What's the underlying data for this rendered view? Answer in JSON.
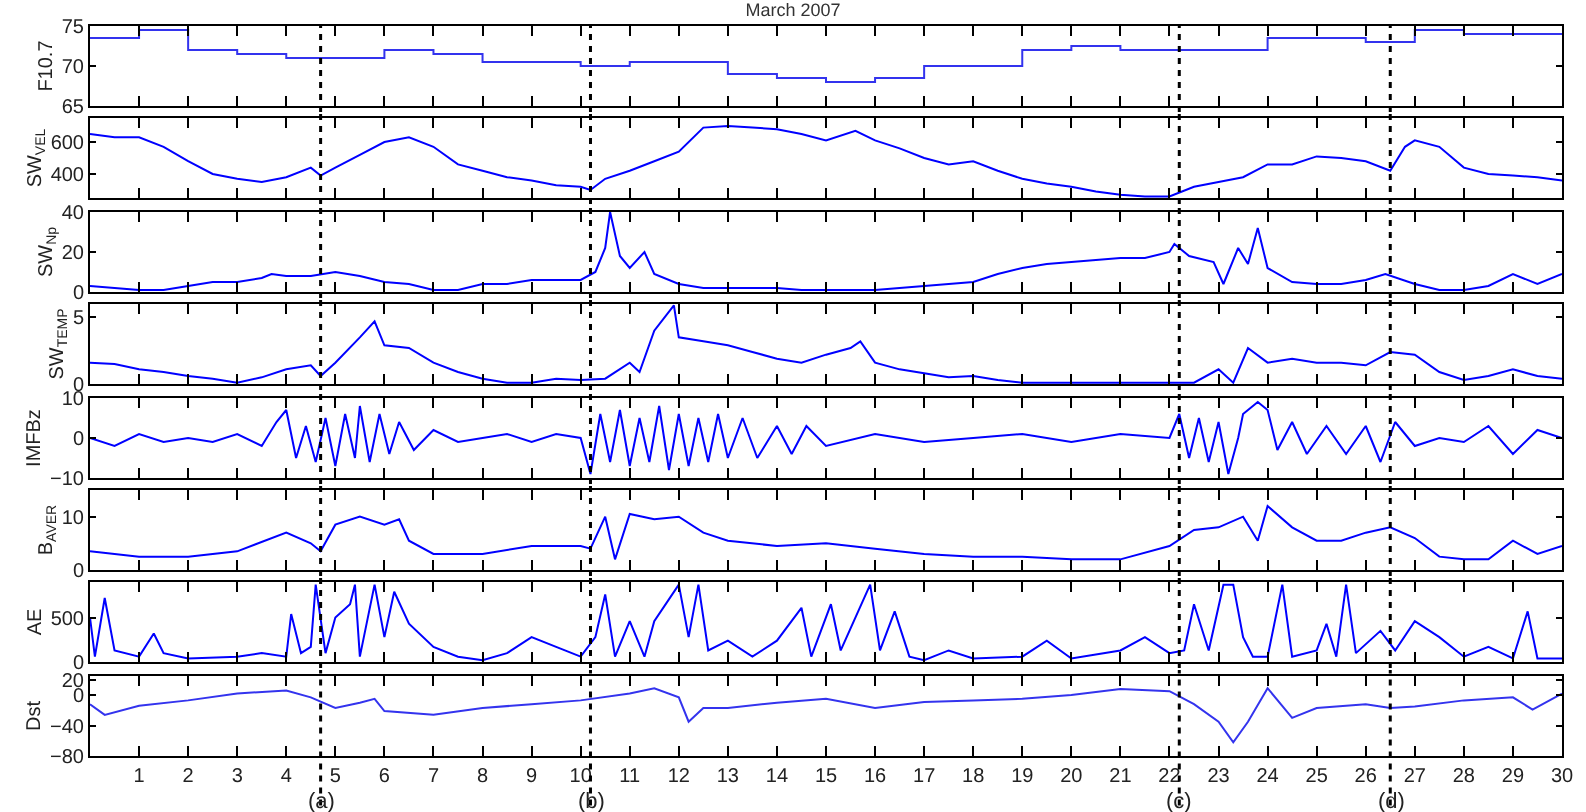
{
  "chart_data": [
    {
      "type": "step",
      "title": "March 2007",
      "ylabel": "F10.7",
      "xlim": [
        0,
        30
      ],
      "xticks": [
        1,
        2,
        3,
        4,
        5,
        6,
        7,
        8,
        9,
        10,
        11,
        12,
        13,
        14,
        15,
        16,
        17,
        18,
        19,
        20,
        21,
        22,
        23,
        24,
        25,
        26,
        27,
        28,
        29,
        30
      ],
      "ylim": [
        65,
        75
      ],
      "yticks": [
        65,
        70,
        75
      ],
      "tick_labels": "y",
      "ref_lines": [
        {
          "axis": "x",
          "value": 4.7,
          "line_style": "dotted",
          "color": "#000000"
        },
        {
          "axis": "x",
          "value": 10.2,
          "line_style": "dotted",
          "color": "#000000"
        },
        {
          "axis": "x",
          "value": 22.2,
          "line_style": "dotted",
          "color": "#000000"
        },
        {
          "axis": "x",
          "value": 26.5,
          "line_style": "dotted",
          "color": "#000000"
        }
      ],
      "series": [
        {
          "color": "#3333ee",
          "x": [
            0,
            1,
            2,
            3,
            4,
            5,
            6,
            7,
            8,
            9,
            10,
            11,
            12,
            13,
            14,
            15,
            16,
            17,
            18,
            19,
            20,
            21,
            22,
            23,
            24,
            25,
            26,
            27,
            28,
            29,
            30
          ],
          "values": [
            73.5,
            74.5,
            72,
            71.5,
            71,
            71,
            72,
            71.5,
            70.5,
            70.5,
            70,
            70.5,
            70.5,
            69,
            68.5,
            68,
            68.5,
            70,
            70,
            72,
            72.5,
            72,
            72,
            72,
            73.5,
            73.5,
            73,
            74.5,
            74,
            74,
            74
          ]
        }
      ]
    },
    {
      "type": "line",
      "ylabel": "SW$_{VEL}$",
      "xlim": [
        0,
        30
      ],
      "xticks": [
        1,
        2,
        3,
        4,
        5,
        6,
        7,
        8,
        9,
        10,
        11,
        12,
        13,
        14,
        15,
        16,
        17,
        18,
        19,
        20,
        21,
        22,
        23,
        24,
        25,
        26,
        27,
        28,
        29,
        30
      ],
      "ylim": [
        250,
        750
      ],
      "yticks": [
        400,
        600
      ],
      "tick_labels": "y",
      "ref_lines": [
        {
          "axis": "x",
          "value": 4.7,
          "line_style": "dotted",
          "color": "#000000"
        },
        {
          "axis": "x",
          "value": 10.2,
          "line_style": "dotted",
          "color": "#000000"
        },
        {
          "axis": "x",
          "value": 22.2,
          "line_style": "dotted",
          "color": "#000000"
        },
        {
          "axis": "x",
          "value": 26.5,
          "line_style": "dotted",
          "color": "#000000"
        }
      ],
      "series": [
        {
          "color": "#0000ff",
          "x": [
            0,
            0.5,
            1,
            1.5,
            2,
            2.5,
            3,
            3.5,
            4,
            4.5,
            4.7,
            5,
            5.5,
            6,
            6.5,
            7,
            7.5,
            8,
            8.5,
            9,
            9.5,
            10,
            10.2,
            10.5,
            11,
            11.5,
            12,
            12.5,
            13,
            13.5,
            14,
            14.5,
            15,
            15.6,
            16,
            16.5,
            17,
            17.5,
            18,
            18.5,
            19,
            19.5,
            20,
            20.5,
            21,
            21.5,
            22,
            22.5,
            23,
            23.5,
            24,
            24.5,
            25,
            25.5,
            26,
            26.5,
            26.8,
            27,
            27.5,
            28,
            28.5,
            29,
            29.5,
            30
          ],
          "values": [
            650,
            630,
            630,
            570,
            480,
            400,
            370,
            350,
            380,
            440,
            390,
            440,
            520,
            600,
            630,
            570,
            460,
            420,
            380,
            360,
            330,
            320,
            300,
            370,
            420,
            480,
            540,
            690,
            700,
            690,
            680,
            650,
            610,
            670,
            610,
            560,
            500,
            460,
            480,
            420,
            370,
            340,
            320,
            290,
            270,
            260,
            260,
            320,
            350,
            380,
            460,
            460,
            510,
            500,
            480,
            420,
            570,
            610,
            570,
            440,
            400,
            390,
            380,
            360
          ]
        }
      ]
    },
    {
      "type": "line",
      "ylabel": "SW$_{Np}$",
      "xlim": [
        0,
        30
      ],
      "xticks": [
        1,
        2,
        3,
        4,
        5,
        6,
        7,
        8,
        9,
        10,
        11,
        12,
        13,
        14,
        15,
        16,
        17,
        18,
        19,
        20,
        21,
        22,
        23,
        24,
        25,
        26,
        27,
        28,
        29,
        30
      ],
      "ylim": [
        0,
        40
      ],
      "yticks": [
        0,
        20,
        40
      ],
      "tick_labels": "y",
      "ref_lines": [
        {
          "axis": "x",
          "value": 4.7,
          "line_style": "dotted",
          "color": "#000000"
        },
        {
          "axis": "x",
          "value": 10.2,
          "line_style": "dotted",
          "color": "#000000"
        },
        {
          "axis": "x",
          "value": 22.2,
          "line_style": "dotted",
          "color": "#000000"
        },
        {
          "axis": "x",
          "value": 26.5,
          "line_style": "dotted",
          "color": "#000000"
        }
      ],
      "series": [
        {
          "color": "#0000ff",
          "x": [
            0,
            0.5,
            1,
            1.5,
            2,
            2.5,
            3,
            3.5,
            3.7,
            4,
            4.5,
            5,
            5.5,
            6,
            6.5,
            7,
            7.5,
            8,
            8.5,
            9,
            9.5,
            10,
            10.3,
            10.5,
            10.6,
            10.8,
            11,
            11.3,
            11.5,
            12,
            12.5,
            13,
            13.5,
            14,
            14.5,
            15,
            15.5,
            16,
            16.5,
            17,
            17.5,
            18,
            18.5,
            19,
            19.5,
            20,
            20.5,
            21,
            21.5,
            22,
            22.1,
            22.4,
            22.9,
            23.1,
            23.4,
            23.6,
            23.8,
            24,
            24.5,
            25,
            25.5,
            26,
            26.4,
            27,
            27.5,
            28,
            28.5,
            29,
            29.5,
            30
          ],
          "values": [
            3,
            2,
            1,
            1,
            3,
            5,
            5,
            7,
            9,
            8,
            8,
            10,
            8,
            5,
            4,
            1,
            1,
            4,
            4,
            6,
            6,
            6,
            10,
            22,
            40,
            18,
            12,
            20,
            9,
            4,
            2,
            2,
            2,
            2,
            1,
            1,
            1,
            1,
            2,
            3,
            4,
            5,
            9,
            12,
            14,
            15,
            16,
            17,
            17,
            20,
            24,
            18,
            15,
            4,
            22,
            14,
            32,
            12,
            5,
            4,
            4,
            6,
            9,
            4,
            1,
            1,
            3,
            9,
            4,
            9
          ]
        }
      ]
    },
    {
      "type": "line",
      "ylabel": "SW$_{TEMP}$",
      "xlim": [
        0,
        30
      ],
      "xticks": [
        1,
        2,
        3,
        4,
        5,
        6,
        7,
        8,
        9,
        10,
        11,
        12,
        13,
        14,
        15,
        16,
        17,
        18,
        19,
        20,
        21,
        22,
        23,
        24,
        25,
        26,
        27,
        28,
        29,
        30
      ],
      "ylim": [
        0,
        6
      ],
      "yticks": [
        0,
        5
      ],
      "tick_labels": "y",
      "ref_lines": [
        {
          "axis": "x",
          "value": 4.7,
          "line_style": "dotted",
          "color": "#000000"
        },
        {
          "axis": "x",
          "value": 10.2,
          "line_style": "dotted",
          "color": "#000000"
        },
        {
          "axis": "x",
          "value": 22.2,
          "line_style": "dotted",
          "color": "#000000"
        },
        {
          "axis": "x",
          "value": 26.5,
          "line_style": "dotted",
          "color": "#000000"
        }
      ],
      "series": [
        {
          "color": "#0000ff",
          "x": [
            0,
            0.5,
            1,
            1.5,
            2,
            2.5,
            3,
            3.5,
            4,
            4.5,
            4.7,
            5,
            5.5,
            5.8,
            6,
            6.5,
            7,
            7.5,
            8,
            8.5,
            9,
            9.5,
            10,
            10.5,
            11,
            11.2,
            11.5,
            11.9,
            12,
            12.5,
            13,
            13.5,
            14,
            14.5,
            15,
            15.5,
            15.7,
            16,
            16.5,
            17,
            17.5,
            18,
            18.5,
            19,
            20,
            21,
            22,
            22.5,
            23,
            23.3,
            23.6,
            24,
            24.5,
            25,
            25.5,
            26,
            26.5,
            27,
            27.5,
            28,
            28.5,
            29,
            29.5,
            30
          ],
          "values": [
            1.6,
            1.5,
            1.1,
            0.9,
            0.6,
            0.4,
            0.1,
            0.5,
            1.1,
            1.4,
            0.6,
            1.6,
            3.5,
            4.7,
            2.9,
            2.7,
            1.6,
            0.9,
            0.4,
            0.1,
            0.1,
            0.4,
            0.3,
            0.4,
            1.6,
            0.9,
            4,
            5.9,
            3.5,
            3.2,
            2.9,
            2.4,
            1.9,
            1.6,
            2.2,
            2.7,
            3.2,
            1.6,
            1.1,
            0.8,
            0.5,
            0.6,
            0.3,
            0.1,
            0.1,
            0.1,
            0.1,
            0.1,
            1.1,
            0.1,
            2.7,
            1.6,
            1.9,
            1.6,
            1.6,
            1.4,
            2.4,
            2.2,
            0.9,
            0.3,
            0.6,
            1.1,
            0.6,
            0.4
          ]
        }
      ]
    },
    {
      "type": "line",
      "ylabel": "IMFBz",
      "xlim": [
        0,
        30
      ],
      "xticks": [
        1,
        2,
        3,
        4,
        5,
        6,
        7,
        8,
        9,
        10,
        11,
        12,
        13,
        14,
        15,
        16,
        17,
        18,
        19,
        20,
        21,
        22,
        23,
        24,
        25,
        26,
        27,
        28,
        29,
        30
      ],
      "ylim": [
        -10,
        10
      ],
      "yticks": [
        {
          "value": -10,
          "label": "−10"
        },
        0,
        10
      ],
      "tick_labels": "y",
      "ref_lines": [
        {
          "axis": "x",
          "value": 4.7,
          "line_style": "dotted",
          "color": "#000000"
        },
        {
          "axis": "x",
          "value": 10.2,
          "line_style": "dotted",
          "color": "#000000"
        },
        {
          "axis": "x",
          "value": 22.2,
          "line_style": "dotted",
          "color": "#000000"
        },
        {
          "axis": "x",
          "value": 26.5,
          "line_style": "dotted",
          "color": "#000000"
        }
      ],
      "series": [
        {
          "color": "#0000ff",
          "x": [
            0,
            0.5,
            1,
            1.5,
            2,
            2.5,
            3,
            3.5,
            3.8,
            4,
            4.2,
            4.4,
            4.6,
            4.8,
            5,
            5.2,
            5.4,
            5.5,
            5.7,
            5.9,
            6.1,
            6.3,
            6.6,
            7,
            7.5,
            8,
            8.5,
            9,
            9.5,
            10,
            10.2,
            10.4,
            10.6,
            10.8,
            11,
            11.2,
            11.4,
            11.6,
            11.8,
            12,
            12.2,
            12.4,
            12.6,
            12.8,
            13,
            13.3,
            13.6,
            14,
            14.3,
            14.6,
            15,
            16,
            17,
            18,
            19,
            20,
            21,
            22,
            22.2,
            22.4,
            22.6,
            22.8,
            23,
            23.2,
            23.4,
            23.5,
            23.8,
            24,
            24.2,
            24.5,
            24.8,
            25.2,
            25.6,
            26,
            26.3,
            26.6,
            27,
            27.5,
            28,
            28.5,
            29,
            29.5,
            30
          ],
          "values": [
            0,
            -2,
            1,
            -1,
            0,
            -1,
            1,
            -2,
            4,
            7,
            -5,
            3,
            -6,
            5,
            -7,
            6,
            -5,
            8,
            -6,
            6,
            -4,
            4,
            -3,
            2,
            -1,
            0,
            1,
            -1,
            1,
            0,
            -9,
            6,
            -6,
            7,
            -7,
            5,
            -6,
            8,
            -8,
            6,
            -7,
            5,
            -6,
            6,
            -5,
            5,
            -5,
            3,
            -4,
            3,
            -2,
            1,
            -1,
            0,
            1,
            -1,
            1,
            0,
            6,
            -5,
            5,
            -6,
            4,
            -9,
            0,
            6,
            9,
            7,
            -3,
            4,
            -4,
            3,
            -4,
            3,
            -6,
            4,
            -2,
            0,
            -1,
            3,
            -4,
            2,
            0
          ]
        }
      ]
    },
    {
      "type": "line",
      "ylabel": "B$_{AVER}$",
      "xlim": [
        0,
        30
      ],
      "xticks": [
        1,
        2,
        3,
        4,
        5,
        6,
        7,
        8,
        9,
        10,
        11,
        12,
        13,
        14,
        15,
        16,
        17,
        18,
        19,
        20,
        21,
        22,
        23,
        24,
        25,
        26,
        27,
        28,
        29,
        30
      ],
      "ylim": [
        0,
        15
      ],
      "yticks": [
        0,
        10
      ],
      "tick_labels": "y",
      "ref_lines": [
        {
          "axis": "x",
          "value": 4.7,
          "line_style": "dotted",
          "color": "#000000"
        },
        {
          "axis": "x",
          "value": 10.2,
          "line_style": "dotted",
          "color": "#000000"
        },
        {
          "axis": "x",
          "value": 22.2,
          "line_style": "dotted",
          "color": "#000000"
        },
        {
          "axis": "x",
          "value": 26.5,
          "line_style": "dotted",
          "color": "#000000"
        }
      ],
      "series": [
        {
          "color": "#0000ff",
          "x": [
            0,
            1,
            2,
            3,
            4,
            4.5,
            4.7,
            5,
            5.5,
            6,
            6.3,
            6.5,
            7,
            8,
            9,
            10,
            10.2,
            10.5,
            10.7,
            11,
            11.5,
            12,
            12.5,
            13,
            14,
            15,
            16,
            17,
            18,
            19,
            20,
            21,
            22,
            22.5,
            23,
            23.5,
            23.8,
            24,
            24.5,
            25,
            25.5,
            26,
            26.5,
            27,
            27.5,
            28,
            28.5,
            29,
            29.5,
            30
          ],
          "values": [
            3.5,
            2.5,
            2.5,
            3.5,
            7,
            5,
            3.5,
            8.5,
            10,
            8.5,
            9.5,
            5.5,
            3,
            3,
            4.5,
            4.5,
            4,
            10,
            2,
            10.5,
            9.5,
            10,
            7,
            5.5,
            4.5,
            5,
            4,
            3,
            2.5,
            2.5,
            2,
            2,
            4.5,
            7.5,
            8,
            10,
            5.5,
            12,
            8,
            5.5,
            5.5,
            7,
            8,
            6,
            2.5,
            2,
            2,
            5.5,
            3,
            4.5
          ]
        }
      ]
    },
    {
      "type": "line",
      "ylabel": "AE",
      "xlim": [
        0,
        30
      ],
      "xticks": [
        1,
        2,
        3,
        4,
        5,
        6,
        7,
        8,
        9,
        10,
        11,
        12,
        13,
        14,
        15,
        16,
        17,
        18,
        19,
        20,
        21,
        22,
        23,
        24,
        25,
        26,
        27,
        28,
        29,
        30
      ],
      "ylim": [
        0,
        900
      ],
      "yticks": [
        0,
        500
      ],
      "tick_labels": "y",
      "ref_lines": [
        {
          "axis": "x",
          "value": 4.7,
          "line_style": "dotted",
          "color": "#000000"
        },
        {
          "axis": "x",
          "value": 10.2,
          "line_style": "dotted",
          "color": "#000000"
        },
        {
          "axis": "x",
          "value": 22.2,
          "line_style": "dotted",
          "color": "#000000"
        },
        {
          "axis": "x",
          "value": 26.5,
          "line_style": "dotted",
          "color": "#000000"
        }
      ],
      "series": [
        {
          "color": "#0000ff",
          "x": [
            0,
            0.1,
            0.3,
            0.5,
            1,
            1.3,
            1.5,
            2,
            3,
            3.5,
            4,
            4.1,
            4.3,
            4.5,
            4.6,
            4.8,
            5,
            5.3,
            5.4,
            5.5,
            5.8,
            6,
            6.2,
            6.5,
            7,
            7.5,
            8,
            8.5,
            9,
            9.5,
            10,
            10.3,
            10.5,
            10.7,
            11,
            11.3,
            11.5,
            12,
            12.2,
            12.4,
            12.6,
            13,
            13.5,
            14,
            14.5,
            14.7,
            15.1,
            15.3,
            15.9,
            16.1,
            16.4,
            16.7,
            17,
            17.5,
            18,
            19,
            19.5,
            20,
            21,
            21.5,
            22,
            22.3,
            22.5,
            22.8,
            23.1,
            23.3,
            23.5,
            23.7,
            24,
            24.3,
            24.5,
            25,
            25.2,
            25.4,
            25.6,
            25.8,
            26.3,
            26.6,
            27,
            27.5,
            28,
            28.5,
            29,
            29.3,
            29.5,
            30
          ],
          "values": [
            500,
            60,
            720,
            130,
            60,
            320,
            100,
            40,
            60,
            100,
            60,
            540,
            100,
            170,
            870,
            100,
            500,
            650,
            870,
            60,
            870,
            280,
            790,
            430,
            170,
            60,
            20,
            100,
            280,
            170,
            60,
            280,
            760,
            60,
            460,
            60,
            460,
            870,
            280,
            870,
            130,
            240,
            60,
            240,
            610,
            60,
            650,
            130,
            870,
            130,
            570,
            60,
            20,
            130,
            40,
            60,
            240,
            40,
            130,
            280,
            100,
            130,
            650,
            130,
            870,
            870,
            280,
            60,
            60,
            870,
            60,
            130,
            430,
            60,
            870,
            100,
            350,
            130,
            460,
            280,
            60,
            170,
            40,
            570,
            40,
            40
          ]
        }
      ]
    },
    {
      "type": "line",
      "ylabel": "Dst",
      "xlim": [
        0,
        30
      ],
      "xticks": [
        1,
        2,
        3,
        4,
        5,
        6,
        7,
        8,
        9,
        10,
        11,
        12,
        13,
        14,
        15,
        16,
        17,
        18,
        19,
        20,
        21,
        22,
        23,
        24,
        25,
        26,
        27,
        28,
        29,
        30
      ],
      "ylim": [
        -80,
        25
      ],
      "yticks": [
        {
          "value": -80,
          "label": "−80"
        },
        {
          "value": -40,
          "label": "−40"
        },
        0,
        20
      ],
      "ref_lines": [
        {
          "axis": "x",
          "value": 4.7,
          "label": "(a)",
          "line_style": "dotted",
          "color": "#000000"
        },
        {
          "axis": "x",
          "value": 10.2,
          "label": "(b)",
          "line_style": "dotted",
          "color": "#000000"
        },
        {
          "axis": "x",
          "value": 22.2,
          "label": "(c)",
          "line_style": "dotted",
          "color": "#000000"
        },
        {
          "axis": "x",
          "value": 26.5,
          "label": "(d)",
          "line_style": "dotted",
          "color": "#000000"
        }
      ],
      "series": [
        {
          "color": "#3333ee",
          "x": [
            0,
            0.3,
            1,
            2,
            3,
            4,
            4.5,
            5,
            5.5,
            5.8,
            6,
            7,
            8,
            9,
            10,
            11,
            11.5,
            12,
            12.2,
            12.5,
            13,
            14,
            15,
            16,
            17,
            18,
            19,
            20,
            21,
            22,
            22.5,
            23,
            23.3,
            23.6,
            24,
            24.5,
            25,
            26,
            26.5,
            27,
            28,
            29,
            29.4,
            30
          ],
          "values": [
            -12,
            -26,
            -14,
            -7,
            2,
            6,
            -3,
            -17,
            -10,
            -5,
            -21,
            -26,
            -17,
            -12,
            -7,
            2,
            9,
            -3,
            -35,
            -17,
            -17,
            -10,
            -5,
            -17,
            -9,
            -7,
            -5,
            0,
            8,
            5,
            -12,
            -35,
            -62,
            -35,
            9,
            -30,
            -17,
            -12,
            -17,
            -15,
            -7,
            -3,
            -19,
            2
          ]
        }
      ]
    }
  ]
}
